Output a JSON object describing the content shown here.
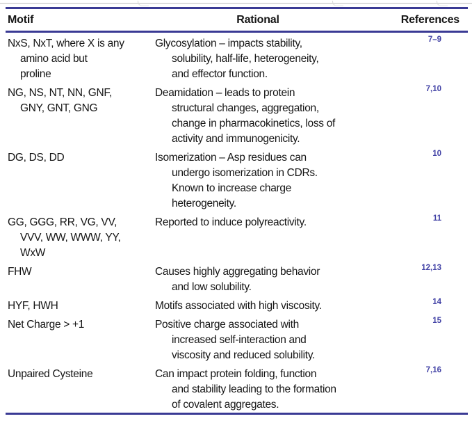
{
  "colors": {
    "rule": "#3a3a94",
    "reference_text": "#4343a6",
    "body_text": "#151515",
    "background": "#ffffff"
  },
  "table": {
    "columns": [
      "Motif",
      "Rational",
      "References"
    ],
    "rows": [
      {
        "motif_lines": [
          "NxS, NxT, where X is any",
          "amino acid but",
          "proline"
        ],
        "rational_lines": [
          "Glycosylation – impacts stability,",
          "solubility, half-life, heterogeneity,",
          "and effector function."
        ],
        "references": "7–9"
      },
      {
        "motif_lines": [
          "NG, NS, NT, NN, GNF,",
          "GNY, GNT, GNG"
        ],
        "rational_lines": [
          "Deamidation – leads to protein",
          "structural changes, aggregation,",
          "change in pharmacokinetics, loss of",
          "activity and immunogenicity."
        ],
        "references": "7,10"
      },
      {
        "motif_lines": [
          "DG, DS, DD"
        ],
        "rational_lines": [
          "Isomerization – Asp residues can",
          "undergo isomerization in CDRs.",
          "Known to increase charge",
          "heterogeneity."
        ],
        "references": "10"
      },
      {
        "motif_lines": [
          "GG, GGG, RR, VG, VV,",
          "VVV, WW, WWW, YY,",
          "WxW"
        ],
        "rational_lines": [
          "Reported to induce polyreactivity."
        ],
        "references": "11"
      },
      {
        "motif_lines": [
          "FHW"
        ],
        "rational_lines": [
          "Causes highly aggregating behavior",
          "and low solubility."
        ],
        "references": "12,13"
      },
      {
        "motif_lines": [
          "HYF, HWH"
        ],
        "rational_lines": [
          "Motifs associated with high viscosity."
        ],
        "references": "14"
      },
      {
        "motif_lines": [
          "Net Charge > +1"
        ],
        "rational_lines": [
          "Positive charge associated with",
          "increased self-interaction and",
          "viscosity and reduced solubility."
        ],
        "references": "15"
      },
      {
        "motif_lines": [
          "Unpaired Cysteine"
        ],
        "rational_lines": [
          "Can impact protein folding, function",
          "and stability leading to the formation",
          "of covalent aggregates."
        ],
        "references": "7,16"
      }
    ]
  }
}
